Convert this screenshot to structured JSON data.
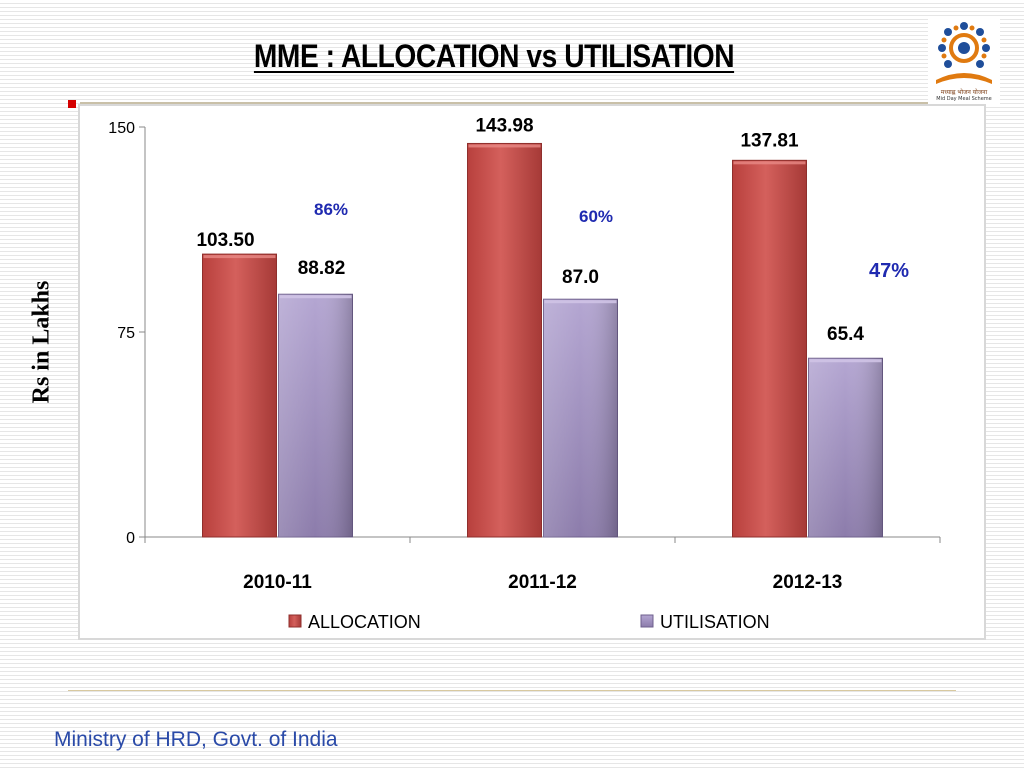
{
  "slide": {
    "title": "MME : ALLOCATION vs UTILISATION",
    "footer": "Ministry of HRD, Govt. of India",
    "logo": {
      "icon": "mid-day-meal-logo",
      "caption_line1": "मध्याह्न भोजन योजना",
      "caption_line2": "Mid Day Meal Scheme"
    }
  },
  "chart_data": {
    "type": "bar",
    "categories": [
      "2010-11",
      "2011-12",
      "2012-13"
    ],
    "series": [
      {
        "name": "ALLOCATION",
        "values": [
          103.5,
          143.98,
          137.81
        ],
        "labels": [
          "103.50",
          "143.98",
          "137.81"
        ],
        "color": "#c0504d"
      },
      {
        "name": "UTILISATION",
        "values": [
          88.82,
          87.0,
          65.4
        ],
        "labels": [
          "88.82",
          "87.0",
          "65.4"
        ],
        "color": "#9e8cbf"
      }
    ],
    "percent_labels": [
      "86%",
      "60%",
      "47%"
    ],
    "percent_color": "#1f2ab0",
    "ylabel": "Rs in Lakhs",
    "xlabel": "",
    "ylim": [
      0,
      150
    ],
    "yticks": [
      0,
      75,
      150
    ],
    "grid": false,
    "legend_position": "bottom"
  }
}
